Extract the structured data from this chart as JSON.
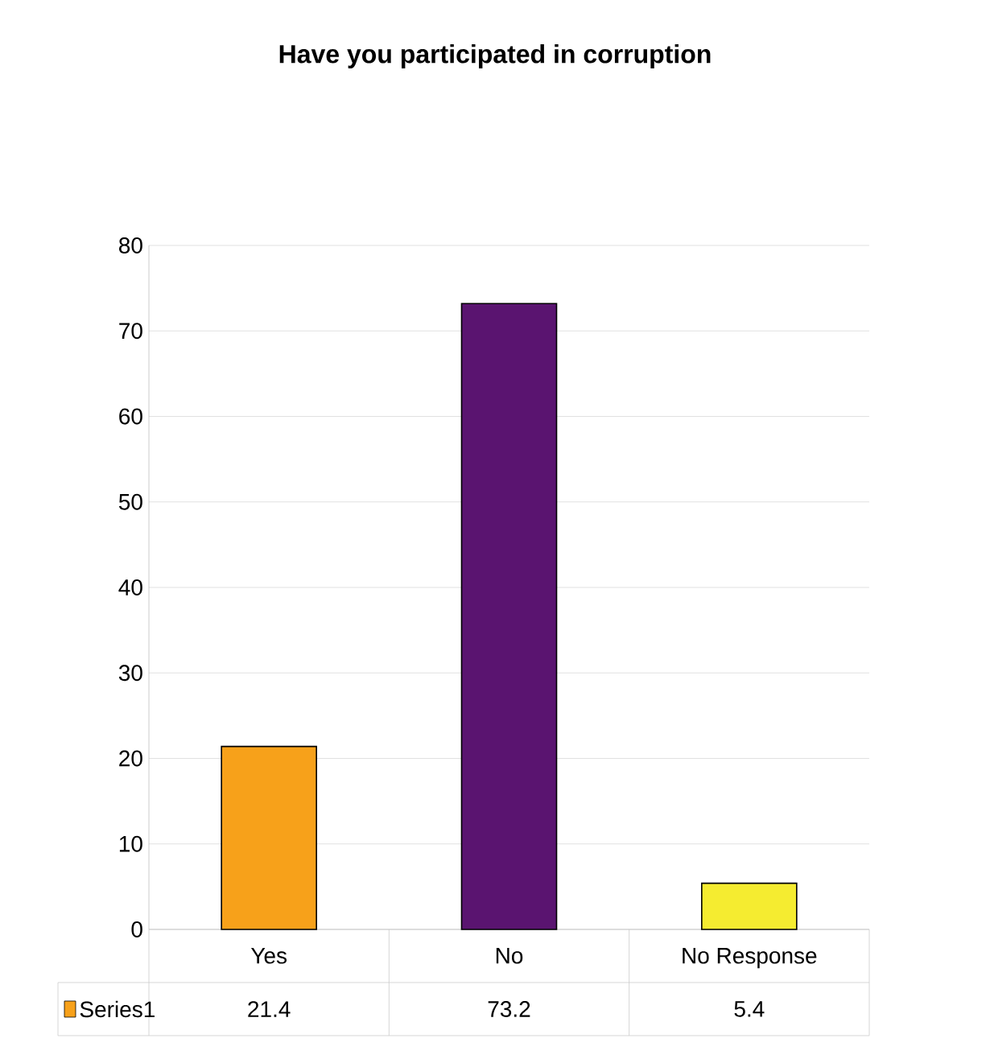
{
  "chart_data": {
    "type": "bar",
    "title": "Have you participated in corruption",
    "categories": [
      "Yes",
      "No",
      "No Response"
    ],
    "series": [
      {
        "name": "Series1",
        "color": "#f7a11a",
        "colors": [
          "#f7a11a",
          "#5a1470",
          "#f5ec30"
        ],
        "values": [
          21.4,
          73.2,
          5.4
        ]
      }
    ],
    "ylim": [
      0,
      80
    ],
    "yticks": [
      0,
      10,
      20,
      30,
      40,
      50,
      60,
      70,
      80
    ],
    "grid": "y",
    "data_labels": true,
    "legend": "bottom left"
  }
}
